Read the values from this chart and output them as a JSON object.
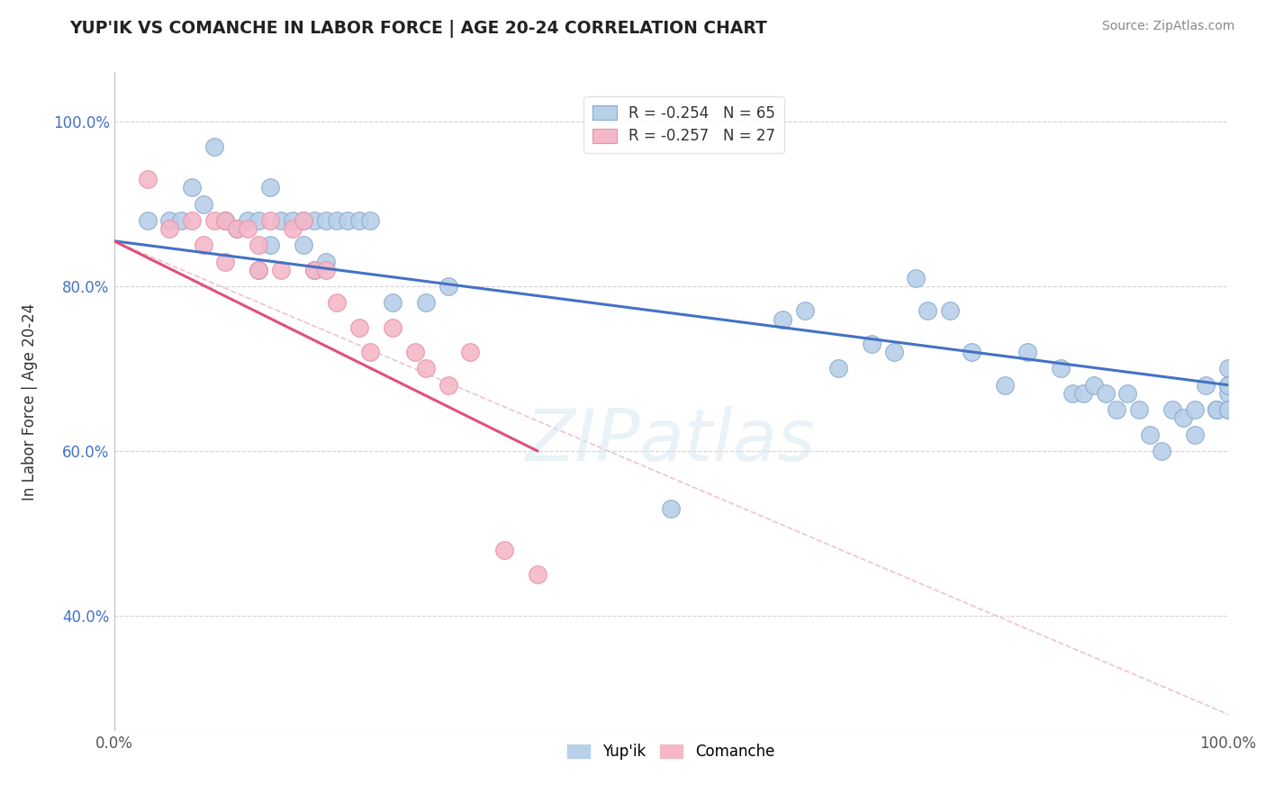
{
  "title": "YUP'IK VS COMANCHE IN LABOR FORCE | AGE 20-24 CORRELATION CHART",
  "source_text": "Source: ZipAtlas.com",
  "ylabel": "In Labor Force | Age 20-24",
  "xlim": [
    0.0,
    1.0
  ],
  "ylim": [
    0.26,
    1.06
  ],
  "x_tick_labels": [
    "0.0%",
    "100.0%"
  ],
  "y_ticks": [
    0.4,
    0.6,
    0.8,
    1.0
  ],
  "y_tick_labels": [
    "40.0%",
    "60.0%",
    "80.0%",
    "100.0%"
  ],
  "yupik_color": "#b8d0e8",
  "comanche_color": "#f4b8c8",
  "yupik_edge": "#88aad0",
  "comanche_edge": "#e890a8",
  "trend_blue": "#4472c4",
  "trend_pink": "#e0507a",
  "trend_dash_color": "#e8a8b8",
  "background": "#ffffff",
  "grid_color": "#c8c8c8",
  "yupik_x": [
    0.03,
    0.05,
    0.06,
    0.07,
    0.08,
    0.09,
    0.1,
    0.1,
    0.11,
    0.12,
    0.13,
    0.13,
    0.14,
    0.14,
    0.15,
    0.16,
    0.17,
    0.17,
    0.18,
    0.18,
    0.19,
    0.19,
    0.2,
    0.21,
    0.22,
    0.23,
    0.25,
    0.28,
    0.3,
    0.5,
    0.6,
    0.62,
    0.65,
    0.68,
    0.7,
    0.72,
    0.73,
    0.75,
    0.77,
    0.8,
    0.82,
    0.85,
    0.86,
    0.87,
    0.88,
    0.89,
    0.9,
    0.91,
    0.92,
    0.93,
    0.94,
    0.95,
    0.96,
    0.97,
    0.97,
    0.98,
    0.99,
    0.99,
    0.99,
    1.0,
    1.0,
    1.0,
    1.0,
    1.0,
    1.0
  ],
  "yupik_y": [
    0.88,
    0.88,
    0.88,
    0.92,
    0.9,
    0.97,
    0.88,
    0.88,
    0.87,
    0.88,
    0.88,
    0.82,
    0.85,
    0.92,
    0.88,
    0.88,
    0.88,
    0.85,
    0.88,
    0.82,
    0.88,
    0.83,
    0.88,
    0.88,
    0.88,
    0.88,
    0.78,
    0.78,
    0.8,
    0.53,
    0.76,
    0.77,
    0.7,
    0.73,
    0.72,
    0.81,
    0.77,
    0.77,
    0.72,
    0.68,
    0.72,
    0.7,
    0.67,
    0.67,
    0.68,
    0.67,
    0.65,
    0.67,
    0.65,
    0.62,
    0.6,
    0.65,
    0.64,
    0.65,
    0.62,
    0.68,
    0.65,
    0.65,
    0.65,
    0.7,
    0.68,
    0.67,
    0.65,
    0.65,
    0.68
  ],
  "comanche_x": [
    0.03,
    0.05,
    0.07,
    0.08,
    0.09,
    0.1,
    0.1,
    0.11,
    0.12,
    0.13,
    0.13,
    0.14,
    0.15,
    0.16,
    0.17,
    0.18,
    0.19,
    0.2,
    0.22,
    0.23,
    0.25,
    0.27,
    0.28,
    0.3,
    0.32,
    0.35,
    0.38
  ],
  "comanche_y": [
    0.93,
    0.87,
    0.88,
    0.85,
    0.88,
    0.88,
    0.83,
    0.87,
    0.87,
    0.85,
    0.82,
    0.88,
    0.82,
    0.87,
    0.88,
    0.82,
    0.82,
    0.78,
    0.75,
    0.72,
    0.75,
    0.72,
    0.7,
    0.68,
    0.72,
    0.48,
    0.45
  ],
  "yupik_trend_x": [
    0.0,
    1.0
  ],
  "yupik_trend_y": [
    0.855,
    0.68
  ],
  "comanche_trend_x": [
    0.0,
    0.38
  ],
  "comanche_trend_y": [
    0.855,
    0.6
  ],
  "dashed_trend_x": [
    0.0,
    1.0
  ],
  "dashed_trend_y": [
    0.855,
    0.28
  ]
}
